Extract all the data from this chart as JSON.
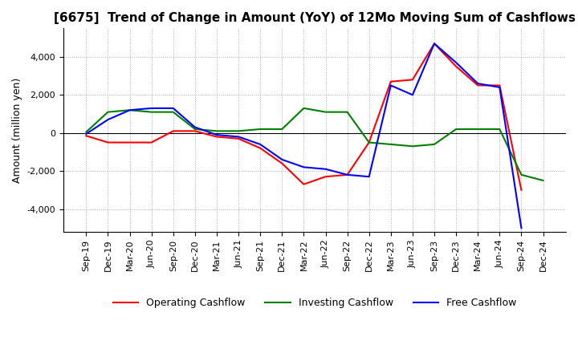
{
  "title": "[6675]  Trend of Change in Amount (YoY) of 12Mo Moving Sum of Cashflows",
  "ylabel": "Amount (million yen)",
  "ylim": [
    -5200,
    5500
  ],
  "yticks": [
    -4000,
    -2000,
    0,
    2000,
    4000
  ],
  "x_labels": [
    "Sep-19",
    "Dec-19",
    "Mar-20",
    "Jun-20",
    "Sep-20",
    "Dec-20",
    "Mar-21",
    "Jun-21",
    "Sep-21",
    "Dec-21",
    "Mar-22",
    "Jun-22",
    "Sep-22",
    "Dec-22",
    "Mar-23",
    "Jun-23",
    "Sep-23",
    "Dec-23",
    "Mar-24",
    "Jun-24",
    "Sep-24",
    "Dec-24"
  ],
  "operating_cashflow": [
    -150,
    -500,
    -500,
    -500,
    100,
    100,
    -200,
    -300,
    -800,
    -1600,
    -2700,
    -2300,
    -2200,
    -500,
    2700,
    2800,
    4700,
    3500,
    2500,
    2500,
    -3000,
    null
  ],
  "investing_cashflow": [
    50,
    1100,
    1200,
    1100,
    1100,
    200,
    100,
    100,
    200,
    200,
    1300,
    1100,
    1100,
    -500,
    -600,
    -700,
    -600,
    200,
    200,
    200,
    -2200,
    -2500
  ],
  "free_cashflow": [
    -50,
    700,
    1200,
    1300,
    1300,
    300,
    -100,
    -200,
    -600,
    -1400,
    -1800,
    -1900,
    -2200,
    -2300,
    2500,
    2000,
    4700,
    3700,
    2600,
    2400,
    -5000,
    null
  ],
  "colors": {
    "operating": "#ff0000",
    "investing": "#008000",
    "free": "#0000ff"
  },
  "legend_labels": [
    "Operating Cashflow",
    "Investing Cashflow",
    "Free Cashflow"
  ]
}
